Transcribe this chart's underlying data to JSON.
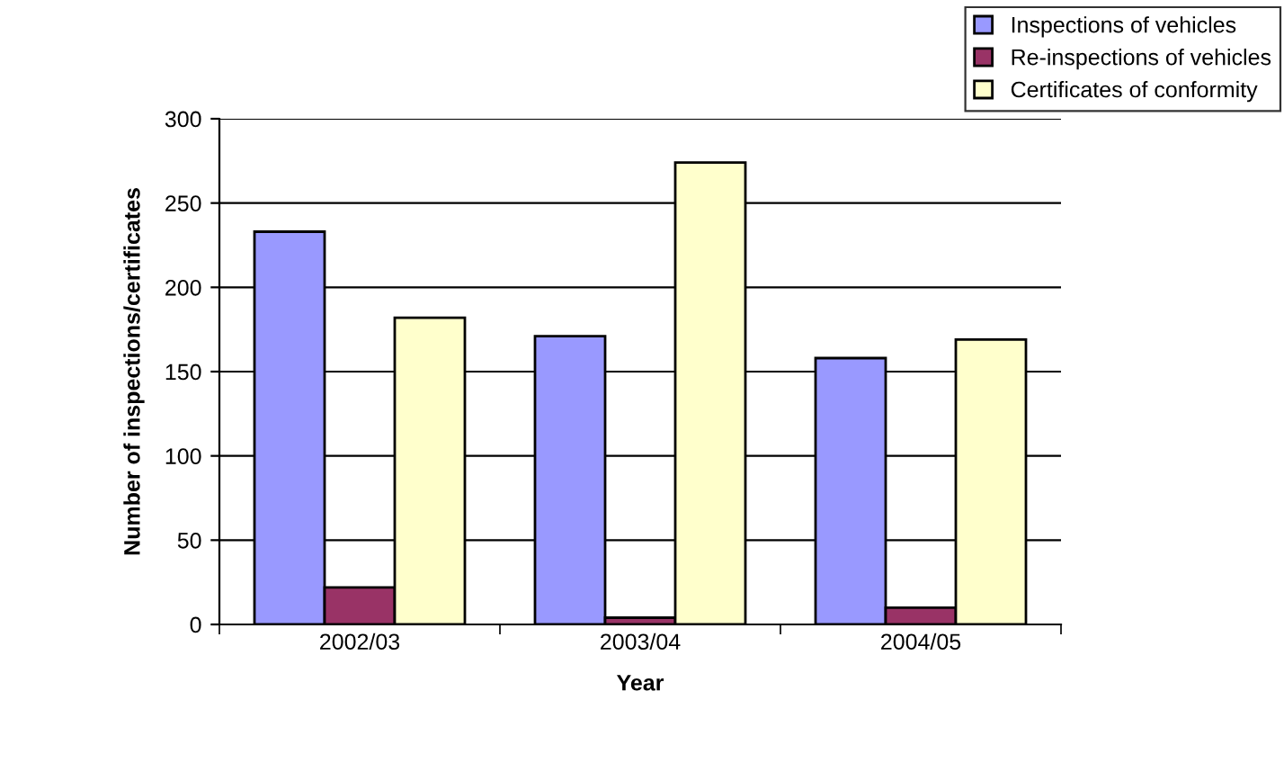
{
  "chart_data": {
    "type": "bar",
    "xlabel": "Year",
    "ylabel": "Number of inspections/certificates",
    "categories": [
      "2002/03",
      "2003/04",
      "2004/05"
    ],
    "series": [
      {
        "name": "Inspections of vehicles",
        "color": "#9999ff",
        "values": [
          233,
          171,
          158
        ]
      },
      {
        "name": "Re-inspections of vehicles",
        "color": "#993366",
        "values": [
          22,
          4,
          10
        ]
      },
      {
        "name": "Certificates of conformity",
        "color": "#ffffcc",
        "values": [
          182,
          274,
          169
        ]
      }
    ],
    "ylim": [
      0,
      300
    ],
    "yticks": [
      0,
      50,
      100,
      150,
      200,
      250,
      300
    ],
    "grid": "y",
    "legend": "top right"
  }
}
